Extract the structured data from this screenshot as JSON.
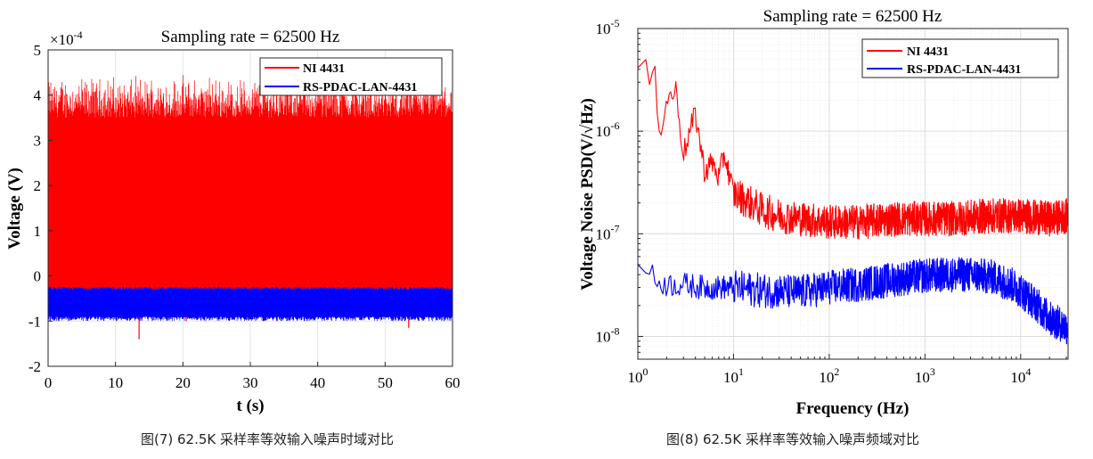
{
  "figures": [
    {
      "caption": "图(7) 62.5K 采样率等效输入噪声时域对比"
    },
    {
      "caption": "图(8) 62.5K 采样率等效输入噪声频域对比"
    }
  ],
  "chart_data": [
    {
      "type": "line",
      "title": "Sampling rate = 62500 Hz",
      "xlabel": "t (s)",
      "ylabel": "Voltage (V)",
      "y_exponent_label": "×10",
      "y_exponent_power": "-4",
      "xlim": [
        0,
        60
      ],
      "ylim": [
        -2,
        5
      ],
      "x_ticks": [
        0,
        10,
        20,
        30,
        40,
        50,
        60
      ],
      "x_tick_labels": [
        "0",
        "10",
        "20",
        "30",
        "40",
        "50",
        "60"
      ],
      "y_ticks": [
        -2,
        -1,
        0,
        1,
        2,
        3,
        4,
        5
      ],
      "y_tick_labels": [
        "-2",
        "-1",
        "0",
        "1",
        "2",
        "3",
        "4",
        "5"
      ],
      "grid": true,
      "legend_position": "top-right",
      "series": [
        {
          "name": "NI 4431",
          "color": "#ff0000",
          "band_low": -0.3,
          "band_high": 3.5,
          "min": -1.4,
          "max": 4.5
        },
        {
          "name": "RS-PDAC-LAN-4431",
          "color": "#0000ff",
          "band_low": -0.9,
          "band_high": -0.3
        }
      ]
    },
    {
      "type": "line",
      "title": "Sampling rate = 62500 Hz",
      "xlabel": "Frequency (Hz)",
      "ylabel": "Voltage Noise PSD(V/√Hz)",
      "x_scale": "log",
      "y_scale": "log",
      "xlim": [
        1,
        31250
      ],
      "ylim": [
        6e-09,
        1e-05
      ],
      "x_ticks": [
        1,
        10,
        100,
        1000,
        10000
      ],
      "x_tick_labels": [
        {
          "base": "10",
          "exp": "0"
        },
        {
          "base": "10",
          "exp": "1"
        },
        {
          "base": "10",
          "exp": "2"
        },
        {
          "base": "10",
          "exp": "3"
        },
        {
          "base": "10",
          "exp": "4"
        }
      ],
      "y_ticks": [
        1e-08,
        1e-07,
        1e-06,
        1e-05
      ],
      "y_tick_labels": [
        {
          "base": "10",
          "exp": "-8"
        },
        {
          "base": "10",
          "exp": "-7"
        },
        {
          "base": "10",
          "exp": "-6"
        },
        {
          "base": "10",
          "exp": "-5"
        }
      ],
      "grid": true,
      "legend_position": "top-right",
      "series": [
        {
          "name": "NI 4431",
          "color": "#ff0000",
          "x": [
            1,
            1.1,
            1.3,
            1.5,
            1.7,
            2,
            2.5,
            3,
            4,
            5,
            6,
            7,
            8,
            10,
            15,
            20,
            30,
            50,
            100,
            200,
            500,
            1000,
            2000,
            5000,
            10000,
            20000,
            31250
          ],
          "y": [
            4e-06,
            5.5e-06,
            3e-06,
            3.5e-06,
            1e-06,
            2e-06,
            2.5e-06,
            6e-07,
            1.5e-06,
            4e-07,
            5e-07,
            3.5e-07,
            6e-07,
            2.5e-07,
            2e-07,
            1.7e-07,
            1.5e-07,
            1.4e-07,
            1.3e-07,
            1.3e-07,
            1.4e-07,
            1.4e-07,
            1.4e-07,
            1.5e-07,
            1.5e-07,
            1.4e-07,
            1.5e-07
          ]
        },
        {
          "name": "RS-PDAC-LAN-4431",
          "color": "#0000ff",
          "x": [
            1,
            1.3,
            1.5,
            2,
            3,
            5,
            10,
            20,
            50,
            100,
            200,
            500,
            1000,
            2000,
            3000,
            5000,
            8000,
            10000,
            15000,
            20000,
            31250
          ],
          "y": [
            4.5e-08,
            4.5e-08,
            3.5e-08,
            3.2e-08,
            3.2e-08,
            3e-08,
            3e-08,
            2.8e-08,
            2.7e-08,
            3e-08,
            3.2e-08,
            3.6e-08,
            3.9e-08,
            4e-08,
            4e-08,
            3.8e-08,
            3.2e-08,
            2.8e-08,
            2e-08,
            1.5e-08,
            1.2e-08
          ]
        }
      ]
    }
  ]
}
